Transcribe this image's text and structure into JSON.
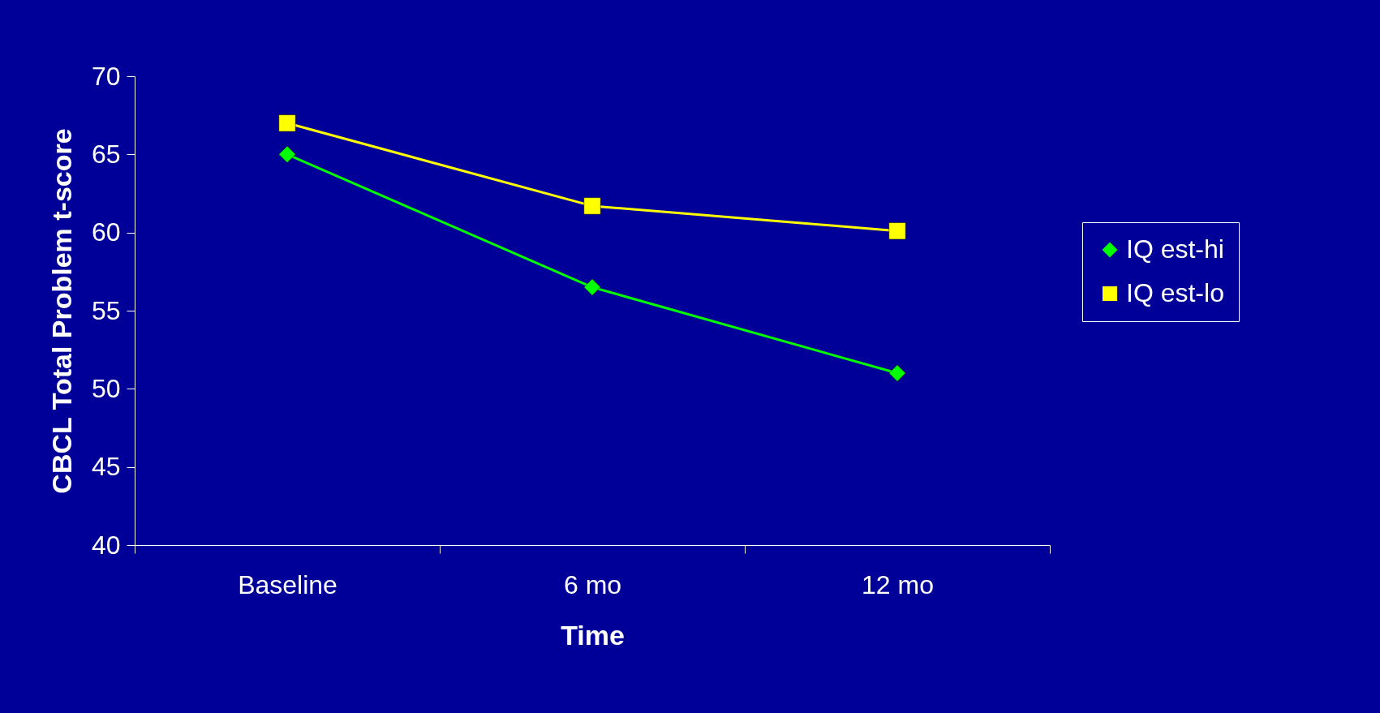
{
  "chart_data": {
    "type": "line",
    "xlabel": "Time",
    "ylabel": "CBCL Total Problem t-score",
    "categories": [
      "Baseline",
      "6 mo",
      "12 mo"
    ],
    "series": [
      {
        "name": "IQ est-hi",
        "color": "#00ff00",
        "marker": "diamond",
        "values": [
          65,
          56.5,
          51
        ]
      },
      {
        "name": "IQ est-lo",
        "color": "#ffff00",
        "marker": "square",
        "values": [
          67,
          61.7,
          60.1
        ]
      }
    ],
    "ylim": [
      40,
      70
    ],
    "yticks": [
      40,
      45,
      50,
      55,
      60,
      65,
      70
    ],
    "grid": false,
    "legend": "right",
    "line_style": "solid"
  }
}
